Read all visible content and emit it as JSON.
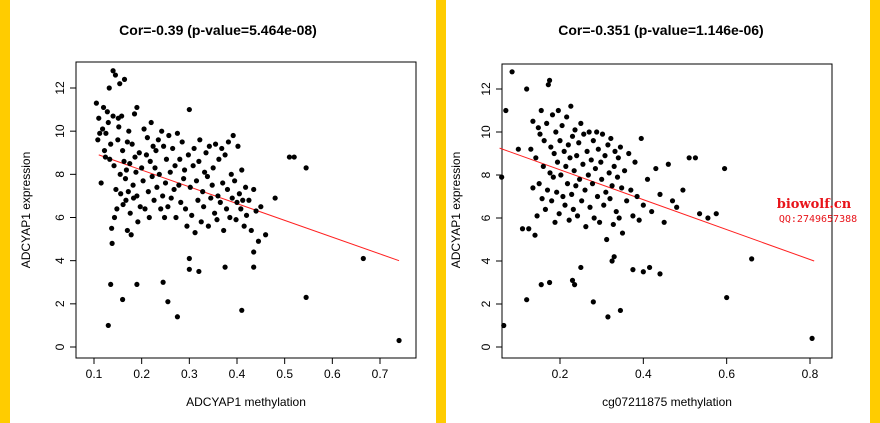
{
  "colors": {
    "band": "#ffcc00",
    "points": "#000000",
    "fit_line": "#ff2020",
    "watermark": "#e8141a"
  },
  "watermark": {
    "line1": "biowolf.cn",
    "line2": "QQ:2749657388"
  },
  "chart_data": [
    {
      "type": "scatter",
      "title": "Cor=-0.39 (p-value=5.464e-08)",
      "xlabel": "ADCYAP1 methylation",
      "ylabel": "ADCYAP1 expression",
      "xlim": [
        0.1,
        0.75
      ],
      "ylim": [
        0,
        13
      ],
      "xticks": [
        0.1,
        0.2,
        0.3,
        0.4,
        0.5,
        0.6,
        0.7
      ],
      "xtick_labels": [
        "0.1",
        "0.2",
        "0.3",
        "0.4",
        "0.5",
        "0.6",
        "0.7"
      ],
      "yticks": [
        0,
        2,
        4,
        6,
        8,
        10,
        12
      ],
      "ytick_labels": [
        "0",
        "2",
        "4",
        "6",
        "8",
        "10",
        "12"
      ],
      "fit_line": {
        "x": [
          0.11,
          0.74
        ],
        "y": [
          8.9,
          4.0
        ]
      },
      "points": [
        [
          0.105,
          11.3
        ],
        [
          0.108,
          9.6
        ],
        [
          0.11,
          10.6
        ],
        [
          0.112,
          9.9
        ],
        [
          0.115,
          7.6
        ],
        [
          0.118,
          10.1
        ],
        [
          0.12,
          11.1
        ],
        [
          0.122,
          9.1
        ],
        [
          0.124,
          8.8
        ],
        [
          0.125,
          9.9
        ],
        [
          0.128,
          10.9
        ],
        [
          0.13,
          10.4
        ],
        [
          0.132,
          12.0
        ],
        [
          0.133,
          8.7
        ],
        [
          0.135,
          9.4
        ],
        [
          0.137,
          5.5
        ],
        [
          0.138,
          4.8
        ],
        [
          0.14,
          12.8
        ],
        [
          0.14,
          10.7
        ],
        [
          0.142,
          8.4
        ],
        [
          0.143,
          6.0
        ],
        [
          0.145,
          12.6
        ],
        [
          0.146,
          7.3
        ],
        [
          0.148,
          6.4
        ],
        [
          0.15,
          9.6
        ],
        [
          0.151,
          10.6
        ],
        [
          0.152,
          10.2
        ],
        [
          0.154,
          12.2
        ],
        [
          0.155,
          8.0
        ],
        [
          0.156,
          7.1
        ],
        [
          0.158,
          10.7
        ],
        [
          0.16,
          9.1
        ],
        [
          0.161,
          6.6
        ],
        [
          0.163,
          8.6
        ],
        [
          0.164,
          12.4
        ],
        [
          0.166,
          7.8
        ],
        [
          0.167,
          6.8
        ],
        [
          0.168,
          8.2
        ],
        [
          0.17,
          5.4
        ],
        [
          0.17,
          9.5
        ],
        [
          0.172,
          7.2
        ],
        [
          0.173,
          10.0
        ],
        [
          0.175,
          8.5
        ],
        [
          0.176,
          6.2
        ],
        [
          0.178,
          5.2
        ],
        [
          0.18,
          9.4
        ],
        [
          0.182,
          7.5
        ],
        [
          0.183,
          6.9
        ],
        [
          0.185,
          10.8
        ],
        [
          0.186,
          8.8
        ],
        [
          0.188,
          8.1
        ],
        [
          0.19,
          11.1
        ],
        [
          0.19,
          7.0
        ],
        [
          0.192,
          5.8
        ],
        [
          0.195,
          9.0
        ],
        [
          0.197,
          6.5
        ],
        [
          0.2,
          8.3
        ],
        [
          0.203,
          7.7
        ],
        [
          0.205,
          10.1
        ],
        [
          0.207,
          6.4
        ],
        [
          0.21,
          8.9
        ],
        [
          0.212,
          9.7
        ],
        [
          0.214,
          7.2
        ],
        [
          0.216,
          6.0
        ],
        [
          0.218,
          8.6
        ],
        [
          0.22,
          10.4
        ],
        [
          0.222,
          7.9
        ],
        [
          0.224,
          9.3
        ],
        [
          0.226,
          6.8
        ],
        [
          0.228,
          8.3
        ],
        [
          0.23,
          9.1
        ],
        [
          0.232,
          7.4
        ],
        [
          0.235,
          9.6
        ],
        [
          0.237,
          8.0
        ],
        [
          0.24,
          6.4
        ],
        [
          0.242,
          10.0
        ],
        [
          0.244,
          7.0
        ],
        [
          0.246,
          9.3
        ],
        [
          0.248,
          6.0
        ],
        [
          0.25,
          7.6
        ],
        [
          0.252,
          8.7
        ],
        [
          0.255,
          6.5
        ],
        [
          0.257,
          9.8
        ],
        [
          0.26,
          8.1
        ],
        [
          0.262,
          6.9
        ],
        [
          0.265,
          9.2
        ],
        [
          0.268,
          7.3
        ],
        [
          0.27,
          8.4
        ],
        [
          0.272,
          6.0
        ],
        [
          0.275,
          9.9
        ],
        [
          0.278,
          7.5
        ],
        [
          0.28,
          8.7
        ],
        [
          0.282,
          6.7
        ],
        [
          0.285,
          9.5
        ],
        [
          0.288,
          7.8
        ],
        [
          0.29,
          8.2
        ],
        [
          0.292,
          6.4
        ],
        [
          0.295,
          5.6
        ],
        [
          0.298,
          8.9
        ],
        [
          0.3,
          11.0
        ],
        [
          0.302,
          7.4
        ],
        [
          0.305,
          6.1
        ],
        [
          0.308,
          8.4
        ],
        [
          0.31,
          9.2
        ],
        [
          0.312,
          5.3
        ],
        [
          0.315,
          7.7
        ],
        [
          0.318,
          6.8
        ],
        [
          0.32,
          8.6
        ],
        [
          0.322,
          9.6
        ],
        [
          0.325,
          5.8
        ],
        [
          0.328,
          7.2
        ],
        [
          0.33,
          6.5
        ],
        [
          0.332,
          8.1
        ],
        [
          0.335,
          9.0
        ],
        [
          0.338,
          7.9
        ],
        [
          0.34,
          5.6
        ],
        [
          0.342,
          9.3
        ],
        [
          0.345,
          6.9
        ],
        [
          0.348,
          7.5
        ],
        [
          0.35,
          8.3
        ],
        [
          0.353,
          6.2
        ],
        [
          0.355,
          9.4
        ],
        [
          0.358,
          5.9
        ],
        [
          0.36,
          7.0
        ],
        [
          0.362,
          8.7
        ],
        [
          0.365,
          6.7
        ],
        [
          0.368,
          9.2
        ],
        [
          0.37,
          7.6
        ],
        [
          0.372,
          5.4
        ],
        [
          0.375,
          8.9
        ],
        [
          0.378,
          6.4
        ],
        [
          0.38,
          7.3
        ],
        [
          0.382,
          9.5
        ],
        [
          0.385,
          6.0
        ],
        [
          0.388,
          8.0
        ],
        [
          0.39,
          6.9
        ],
        [
          0.392,
          9.8
        ],
        [
          0.395,
          7.7
        ],
        [
          0.398,
          5.9
        ],
        [
          0.4,
          6.7
        ],
        [
          0.402,
          9.3
        ],
        [
          0.405,
          7.1
        ],
        [
          0.408,
          6.4
        ],
        [
          0.41,
          8.2
        ],
        [
          0.412,
          6.8
        ],
        [
          0.415,
          5.6
        ],
        [
          0.418,
          7.4
        ],
        [
          0.42,
          6.1
        ],
        [
          0.425,
          6.8
        ],
        [
          0.43,
          5.4
        ],
        [
          0.435,
          7.3
        ],
        [
          0.44,
          6.3
        ],
        [
          0.445,
          4.9
        ],
        [
          0.45,
          6.5
        ],
        [
          0.46,
          5.2
        ],
        [
          0.48,
          6.9
        ],
        [
          0.51,
          8.8
        ],
        [
          0.52,
          8.8
        ],
        [
          0.545,
          8.3
        ],
        [
          0.13,
          1.0
        ],
        [
          0.135,
          2.9
        ],
        [
          0.16,
          2.2
        ],
        [
          0.19,
          2.9
        ],
        [
          0.245,
          3.0
        ],
        [
          0.255,
          2.1
        ],
        [
          0.275,
          1.4
        ],
        [
          0.3,
          4.1
        ],
        [
          0.3,
          3.6
        ],
        [
          0.32,
          3.5
        ],
        [
          0.375,
          3.7
        ],
        [
          0.41,
          1.7
        ],
        [
          0.435,
          4.4
        ],
        [
          0.435,
          3.7
        ],
        [
          0.545,
          2.3
        ],
        [
          0.665,
          4.1
        ],
        [
          0.74,
          0.3
        ]
      ]
    },
    {
      "type": "scatter",
      "title": "Cor=-0.351 (p-value=1.146e-06)",
      "xlabel": "cg07211875 methylation",
      "ylabel": "ADCYAP1 expression",
      "xlim": [
        0.05,
        0.82
      ],
      "ylim": [
        0,
        13
      ],
      "xticks": [
        0.2,
        0.4,
        0.6,
        0.8
      ],
      "xtick_labels": [
        "0.2",
        "0.4",
        "0.6",
        "0.8"
      ],
      "yticks": [
        0,
        2,
        4,
        6,
        8,
        10,
        12
      ],
      "ytick_labels": [
        "0",
        "2",
        "4",
        "6",
        "8",
        "10",
        "12"
      ],
      "fit_line": {
        "x": [
          0.055,
          0.81
        ],
        "y": [
          9.25,
          4.0
        ]
      },
      "points": [
        [
          0.06,
          7.9
        ],
        [
          0.07,
          11.0
        ],
        [
          0.085,
          12.8
        ],
        [
          0.1,
          9.2
        ],
        [
          0.11,
          5.5
        ],
        [
          0.12,
          12.0
        ],
        [
          0.125,
          5.5
        ],
        [
          0.13,
          9.2
        ],
        [
          0.135,
          7.4
        ],
        [
          0.135,
          10.5
        ],
        [
          0.14,
          5.2
        ],
        [
          0.142,
          8.8
        ],
        [
          0.145,
          6.1
        ],
        [
          0.148,
          10.2
        ],
        [
          0.15,
          7.6
        ],
        [
          0.152,
          9.9
        ],
        [
          0.155,
          11.0
        ],
        [
          0.157,
          6.9
        ],
        [
          0.16,
          8.4
        ],
        [
          0.162,
          9.6
        ],
        [
          0.165,
          6.4
        ],
        [
          0.168,
          10.4
        ],
        [
          0.17,
          7.3
        ],
        [
          0.172,
          12.2
        ],
        [
          0.175,
          12.4
        ],
        [
          0.176,
          8.1
        ],
        [
          0.178,
          9.3
        ],
        [
          0.18,
          6.8
        ],
        [
          0.182,
          10.8
        ],
        [
          0.184,
          7.9
        ],
        [
          0.186,
          9.0
        ],
        [
          0.188,
          5.8
        ],
        [
          0.19,
          10.0
        ],
        [
          0.192,
          7.2
        ],
        [
          0.194,
          8.6
        ],
        [
          0.196,
          11.0
        ],
        [
          0.198,
          6.2
        ],
        [
          0.2,
          9.6
        ],
        [
          0.202,
          8.0
        ],
        [
          0.205,
          10.3
        ],
        [
          0.207,
          7.0
        ],
        [
          0.21,
          9.1
        ],
        [
          0.212,
          6.6
        ],
        [
          0.214,
          8.4
        ],
        [
          0.216,
          10.7
        ],
        [
          0.218,
          7.6
        ],
        [
          0.22,
          9.4
        ],
        [
          0.222,
          5.9
        ],
        [
          0.224,
          8.8
        ],
        [
          0.226,
          11.2
        ],
        [
          0.228,
          7.1
        ],
        [
          0.23,
          9.8
        ],
        [
          0.232,
          6.4
        ],
        [
          0.234,
          8.2
        ],
        [
          0.236,
          10.1
        ],
        [
          0.238,
          7.5
        ],
        [
          0.24,
          8.9
        ],
        [
          0.242,
          6.1
        ],
        [
          0.245,
          9.5
        ],
        [
          0.247,
          7.8
        ],
        [
          0.25,
          10.4
        ],
        [
          0.252,
          6.8
        ],
        [
          0.255,
          8.5
        ],
        [
          0.257,
          9.9
        ],
        [
          0.26,
          7.3
        ],
        [
          0.262,
          5.6
        ],
        [
          0.265,
          9.1
        ],
        [
          0.268,
          8.0
        ],
        [
          0.27,
          10.0
        ],
        [
          0.272,
          6.5
        ],
        [
          0.275,
          8.7
        ],
        [
          0.278,
          7.6
        ],
        [
          0.28,
          9.6
        ],
        [
          0.282,
          6.0
        ],
        [
          0.285,
          8.3
        ],
        [
          0.288,
          10.0
        ],
        [
          0.29,
          7.0
        ],
        [
          0.292,
          9.2
        ],
        [
          0.295,
          5.8
        ],
        [
          0.298,
          8.6
        ],
        [
          0.3,
          7.8
        ],
        [
          0.302,
          9.9
        ],
        [
          0.305,
          6.6
        ],
        [
          0.308,
          8.9
        ],
        [
          0.31,
          7.2
        ],
        [
          0.312,
          5.0
        ],
        [
          0.315,
          9.4
        ],
        [
          0.318,
          8.1
        ],
        [
          0.32,
          6.9
        ],
        [
          0.322,
          9.7
        ],
        [
          0.325,
          7.5
        ],
        [
          0.328,
          5.7
        ],
        [
          0.33,
          8.4
        ],
        [
          0.332,
          9.1
        ],
        [
          0.335,
          6.3
        ],
        [
          0.338,
          7.9
        ],
        [
          0.34,
          8.8
        ],
        [
          0.342,
          6.0
        ],
        [
          0.345,
          9.3
        ],
        [
          0.348,
          7.4
        ],
        [
          0.35,
          5.3
        ],
        [
          0.355,
          8.2
        ],
        [
          0.36,
          6.8
        ],
        [
          0.365,
          9.0
        ],
        [
          0.37,
          7.3
        ],
        [
          0.375,
          6.1
        ],
        [
          0.38,
          8.6
        ],
        [
          0.385,
          7.0
        ],
        [
          0.39,
          5.9
        ],
        [
          0.395,
          9.7
        ],
        [
          0.4,
          6.6
        ],
        [
          0.41,
          7.8
        ],
        [
          0.42,
          6.3
        ],
        [
          0.43,
          8.3
        ],
        [
          0.44,
          7.1
        ],
        [
          0.45,
          5.8
        ],
        [
          0.46,
          8.5
        ],
        [
          0.47,
          6.8
        ],
        [
          0.48,
          6.5
        ],
        [
          0.495,
          7.3
        ],
        [
          0.51,
          8.8
        ],
        [
          0.525,
          8.8
        ],
        [
          0.535,
          6.2
        ],
        [
          0.555,
          6.0
        ],
        [
          0.575,
          6.2
        ],
        [
          0.595,
          8.3
        ],
        [
          0.065,
          1.0
        ],
        [
          0.12,
          2.2
        ],
        [
          0.155,
          2.9
        ],
        [
          0.175,
          3.0
        ],
        [
          0.23,
          3.1
        ],
        [
          0.235,
          2.9
        ],
        [
          0.25,
          3.7
        ],
        [
          0.28,
          2.1
        ],
        [
          0.315,
          1.4
        ],
        [
          0.325,
          4.0
        ],
        [
          0.33,
          4.2
        ],
        [
          0.345,
          1.7
        ],
        [
          0.375,
          3.6
        ],
        [
          0.4,
          3.5
        ],
        [
          0.415,
          3.7
        ],
        [
          0.44,
          3.4
        ],
        [
          0.6,
          2.3
        ],
        [
          0.66,
          4.1
        ],
        [
          0.805,
          0.4
        ]
      ]
    }
  ]
}
